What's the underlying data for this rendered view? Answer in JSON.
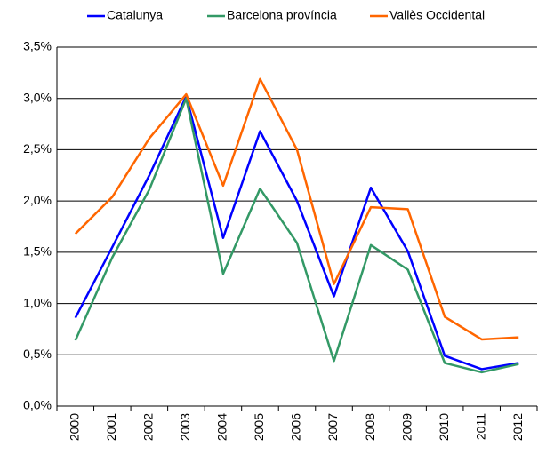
{
  "chart_data": {
    "type": "line",
    "categories": [
      "2000",
      "2001",
      "2002",
      "2003",
      "2004",
      "2005",
      "2006",
      "2007",
      "2008",
      "2009",
      "2010",
      "2011",
      "2012"
    ],
    "series": [
      {
        "name": "Catalunya",
        "color": "#0000ff",
        "values": [
          0.86,
          1.55,
          2.25,
          3.02,
          1.64,
          2.68,
          2.0,
          1.07,
          2.13,
          1.51,
          0.49,
          0.36,
          0.42
        ]
      },
      {
        "name": "Barcelona província",
        "color": "#339966",
        "values": [
          0.64,
          1.45,
          2.11,
          3.0,
          1.29,
          2.12,
          1.59,
          0.44,
          1.57,
          1.33,
          0.42,
          0.33,
          0.41
        ]
      },
      {
        "name": "Vallès Occidental",
        "color": "#ff6600",
        "values": [
          1.68,
          2.04,
          2.61,
          3.04,
          2.15,
          3.19,
          2.5,
          1.19,
          1.94,
          1.92,
          0.87,
          0.65,
          0.67
        ]
      }
    ],
    "ylim": [
      0,
      3.5
    ],
    "yticks": [
      {
        "value": 0,
        "label": "0,0%"
      },
      {
        "value": 0.5,
        "label": "0,5%"
      },
      {
        "value": 1,
        "label": "1,0%"
      },
      {
        "value": 1.5,
        "label": "1,5%"
      },
      {
        "value": 2,
        "label": "2,0%"
      },
      {
        "value": 2.5,
        "label": "2,5%"
      },
      {
        "value": 3,
        "label": "3,0%"
      },
      {
        "value": 3.5,
        "label": "3,5%"
      }
    ],
    "grid": true,
    "legend": "top"
  }
}
